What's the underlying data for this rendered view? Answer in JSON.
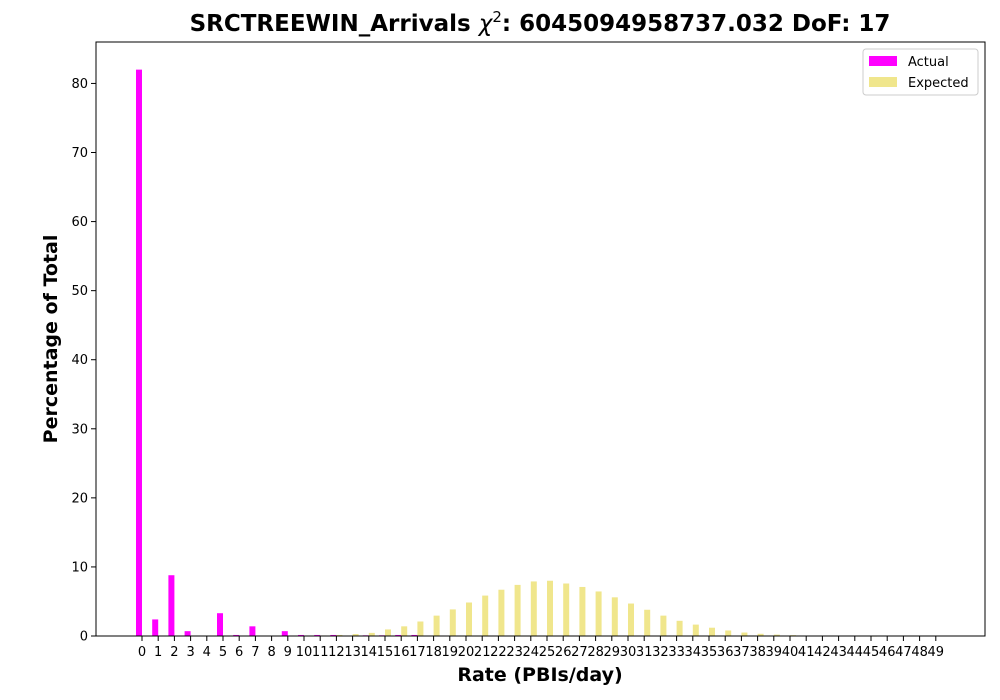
{
  "chart_data": {
    "type": "bar",
    "title_prefix": "SRCTREEWIN_Arrivals ",
    "title_symbol": "χ",
    "title_superscript": "2",
    "title_suffix": ": 6045094958737.032 DoF: 17",
    "xlabel": "Rate (PBIs/day)",
    "ylabel": "Percentage of Total",
    "ylim": [
      0,
      86
    ],
    "yticks": [
      0,
      10,
      20,
      30,
      40,
      50,
      60,
      70,
      80
    ],
    "categories": [
      "0",
      "1",
      "2",
      "3",
      "4",
      "5",
      "6",
      "7",
      "8",
      "9",
      "10",
      "11",
      "12",
      "13",
      "14",
      "15",
      "16",
      "17",
      "18",
      "19",
      "20",
      "21",
      "22",
      "23",
      "24",
      "25",
      "26",
      "27",
      "28",
      "29",
      "30",
      "31",
      "32",
      "33",
      "34",
      "35",
      "36",
      "37",
      "38",
      "39",
      "40",
      "41",
      "42",
      "43",
      "44",
      "45",
      "46",
      "47",
      "48",
      "49"
    ],
    "legend_position": "top-right",
    "series": [
      {
        "name": "Actual",
        "color": "#ff00ff",
        "values": [
          82.0,
          2.4,
          8.8,
          0.7,
          0,
          3.3,
          0.15,
          1.4,
          0,
          0.7,
          0.15,
          0.15,
          0.15,
          0,
          0.1,
          0.1,
          0.15,
          0.15,
          0,
          0,
          0,
          0,
          0,
          0,
          0,
          0,
          0,
          0,
          0,
          0,
          0,
          0,
          0,
          0,
          0,
          0,
          0,
          0,
          0,
          0,
          0,
          0,
          0,
          0,
          0,
          0,
          0,
          0,
          0,
          0
        ]
      },
      {
        "name": "Expected",
        "color": "#f0e68c",
        "values": [
          0,
          0,
          0,
          0,
          0,
          0,
          0,
          0,
          0,
          0.02,
          0.04,
          0.08,
          0.15,
          0.28,
          0.45,
          0.95,
          1.4,
          2.1,
          2.95,
          3.85,
          4.85,
          5.85,
          6.7,
          7.4,
          7.9,
          8.0,
          7.6,
          7.1,
          6.45,
          5.6,
          4.7,
          3.8,
          2.95,
          2.2,
          1.65,
          1.2,
          0.8,
          0.5,
          0.32,
          0.2,
          0.12,
          0.07,
          0.04,
          0.02,
          0.01,
          0.005,
          0,
          0,
          0,
          0
        ]
      }
    ]
  }
}
